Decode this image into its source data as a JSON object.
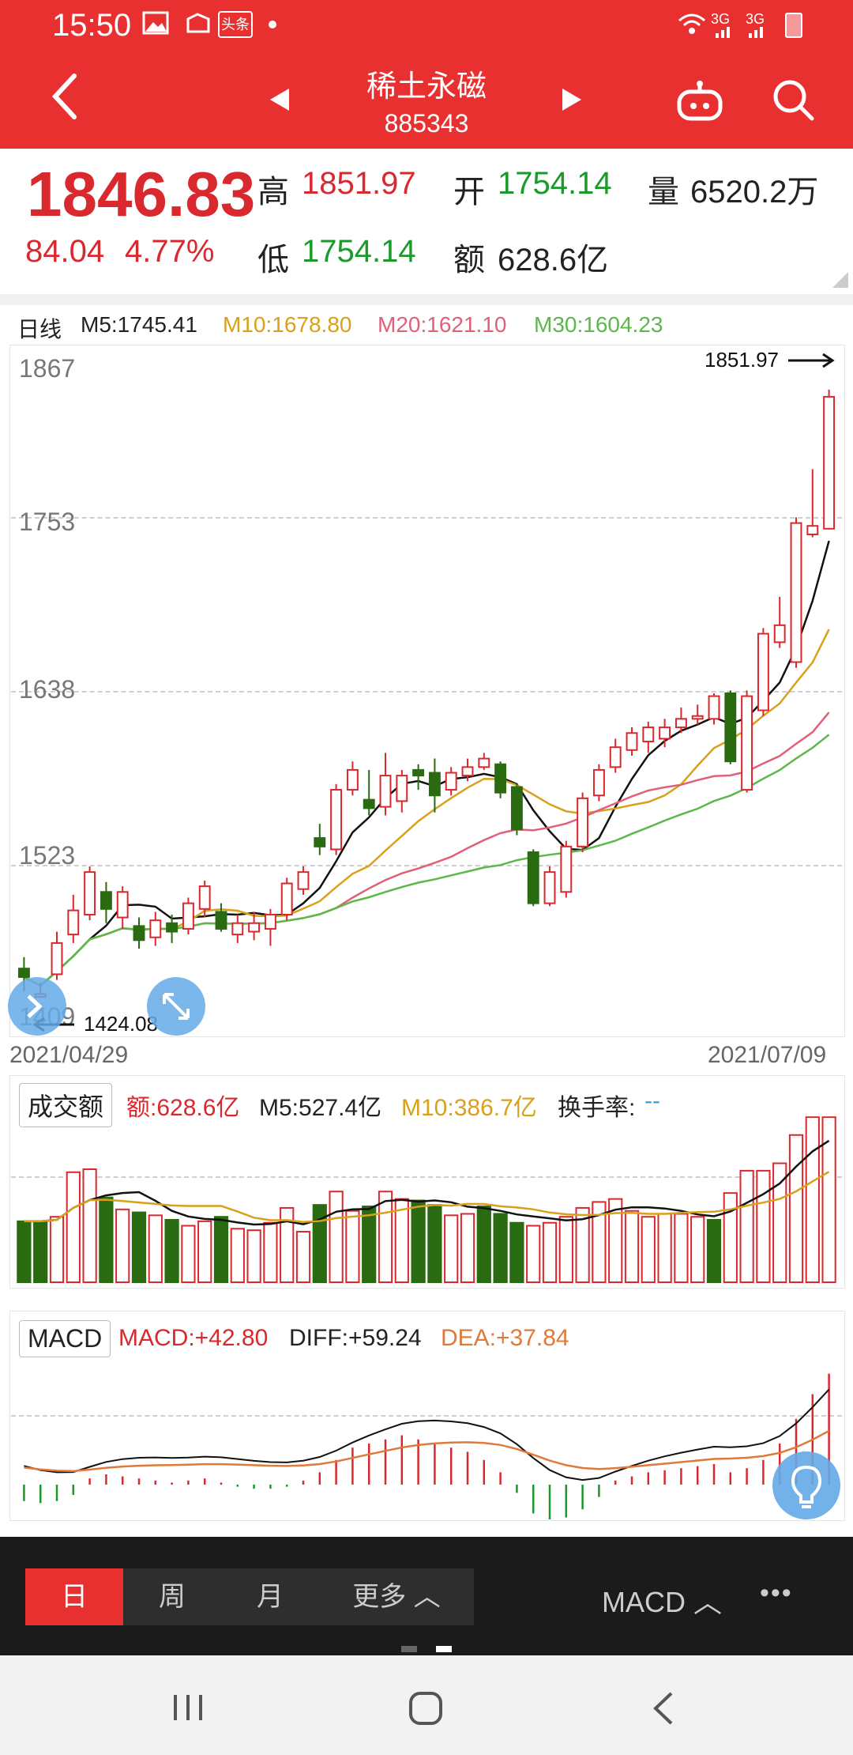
{
  "status": {
    "time": "15:50",
    "network": "3G",
    "network2": "3G"
  },
  "header": {
    "title": "稀土永磁",
    "code": "885343",
    "back_icon": "chevron-left-icon",
    "prev_icon": "triangle-left-icon",
    "next_icon": "triangle-right-icon",
    "robot_icon": "robot-icon",
    "search_icon": "search-icon"
  },
  "quote": {
    "price": "1846.83",
    "change": "84.04",
    "change_pct": "4.77%",
    "high_label": "高",
    "high": "1851.97",
    "open_label": "开",
    "open": "1754.14",
    "vol_label": "量",
    "vol": "6520.2万",
    "low_label": "低",
    "low": "1754.14",
    "amount_label": "额",
    "amount": "628.6亿"
  },
  "ma": {
    "period": "日线",
    "m5": "M5:1745.41",
    "m10": "M10:1678.80",
    "m20": "M20:1621.10",
    "m30": "M30:1604.23"
  },
  "chart": {
    "y_labels": [
      "1867",
      "1753",
      "1638",
      "1523",
      "1409"
    ],
    "max_label": "1851.97",
    "min_label": "1424.08",
    "start_date": "2021/04/29",
    "end_date": "2021/07/09"
  },
  "volume": {
    "button": "成交额",
    "amount": "额:628.6亿",
    "m5": "M5:527.4亿",
    "m10": "M10:386.7亿",
    "turnover_label": "换手率:",
    "turnover": "--"
  },
  "macd": {
    "button": "MACD",
    "macd": "MACD:+42.80",
    "diff": "DIFF:+59.24",
    "dea": "DEA:+37.84"
  },
  "bottom": {
    "tabs": [
      "日",
      "周",
      "月",
      "更多 ︿"
    ],
    "indicator": "MACD ︿",
    "more": "•••"
  },
  "colors": {
    "header": "#e93030",
    "up": "#d9282e",
    "down": "#2a6a10",
    "m10": "#d9a01a",
    "m20": "#e0607a",
    "m30": "#5cb84a"
  },
  "chart_data": {
    "type": "candlestick",
    "ylim": [
      1409,
      1867
    ],
    "candles": [
      {
        "o": 1444,
        "c": 1438,
        "h": 1452,
        "l": 1428
      },
      {
        "o": 1424,
        "c": 1426,
        "h": 1434,
        "l": 1424
      },
      {
        "o": 1440,
        "c": 1462,
        "h": 1470,
        "l": 1436
      },
      {
        "o": 1468,
        "c": 1485,
        "h": 1496,
        "l": 1462
      },
      {
        "o": 1482,
        "c": 1512,
        "h": 1516,
        "l": 1478
      },
      {
        "o": 1498,
        "c": 1486,
        "h": 1505,
        "l": 1476
      },
      {
        "o": 1480,
        "c": 1498,
        "h": 1502,
        "l": 1472
      },
      {
        "o": 1474,
        "c": 1464,
        "h": 1480,
        "l": 1458
      },
      {
        "o": 1466,
        "c": 1478,
        "h": 1484,
        "l": 1460
      },
      {
        "o": 1476,
        "c": 1470,
        "h": 1482,
        "l": 1462
      },
      {
        "o": 1472,
        "c": 1490,
        "h": 1494,
        "l": 1468
      },
      {
        "o": 1486,
        "c": 1502,
        "h": 1506,
        "l": 1480
      },
      {
        "o": 1484,
        "c": 1472,
        "h": 1490,
        "l": 1470
      },
      {
        "o": 1468,
        "c": 1476,
        "h": 1482,
        "l": 1462
      },
      {
        "o": 1470,
        "c": 1476,
        "h": 1484,
        "l": 1464
      },
      {
        "o": 1472,
        "c": 1482,
        "h": 1486,
        "l": 1460
      },
      {
        "o": 1482,
        "c": 1504,
        "h": 1508,
        "l": 1478
      },
      {
        "o": 1500,
        "c": 1512,
        "h": 1516,
        "l": 1496
      },
      {
        "o": 1536,
        "c": 1530,
        "h": 1546,
        "l": 1524
      },
      {
        "o": 1528,
        "c": 1570,
        "h": 1574,
        "l": 1524
      },
      {
        "o": 1570,
        "c": 1584,
        "h": 1590,
        "l": 1566
      },
      {
        "o": 1563,
        "c": 1557,
        "h": 1584,
        "l": 1552
      },
      {
        "o": 1558,
        "c": 1580,
        "h": 1596,
        "l": 1552
      },
      {
        "o": 1562,
        "c": 1580,
        "h": 1584,
        "l": 1554
      },
      {
        "o": 1584,
        "c": 1580,
        "h": 1588,
        "l": 1570
      },
      {
        "o": 1582,
        "c": 1566,
        "h": 1592,
        "l": 1554
      },
      {
        "o": 1570,
        "c": 1582,
        "h": 1586,
        "l": 1566
      },
      {
        "o": 1580,
        "c": 1586,
        "h": 1592,
        "l": 1576
      },
      {
        "o": 1586,
        "c": 1592,
        "h": 1596,
        "l": 1584
      },
      {
        "o": 1588,
        "c": 1568,
        "h": 1590,
        "l": 1564
      },
      {
        "o": 1572,
        "c": 1542,
        "h": 1574,
        "l": 1538
      },
      {
        "o": 1526,
        "c": 1490,
        "h": 1528,
        "l": 1488
      },
      {
        "o": 1490,
        "c": 1512,
        "h": 1516,
        "l": 1488
      },
      {
        "o": 1498,
        "c": 1530,
        "h": 1534,
        "l": 1494
      },
      {
        "o": 1530,
        "c": 1564,
        "h": 1568,
        "l": 1526
      },
      {
        "o": 1566,
        "c": 1584,
        "h": 1588,
        "l": 1562
      },
      {
        "o": 1586,
        "c": 1600,
        "h": 1606,
        "l": 1582
      },
      {
        "o": 1598,
        "c": 1610,
        "h": 1614,
        "l": 1594
      },
      {
        "o": 1604,
        "c": 1614,
        "h": 1618,
        "l": 1596
      },
      {
        "o": 1606,
        "c": 1614,
        "h": 1620,
        "l": 1600
      },
      {
        "o": 1614,
        "c": 1620,
        "h": 1628,
        "l": 1610
      },
      {
        "o": 1620,
        "c": 1622,
        "h": 1630,
        "l": 1616
      },
      {
        "o": 1620,
        "c": 1636,
        "h": 1638,
        "l": 1616
      },
      {
        "o": 1638,
        "c": 1590,
        "h": 1640,
        "l": 1588
      },
      {
        "o": 1570,
        "c": 1636,
        "h": 1640,
        "l": 1568
      },
      {
        "o": 1626,
        "c": 1680,
        "h": 1684,
        "l": 1622
      },
      {
        "o": 1674,
        "c": 1686,
        "h": 1706,
        "l": 1670
      },
      {
        "o": 1660,
        "c": 1758,
        "h": 1762,
        "l": 1656
      },
      {
        "o": 1750,
        "c": 1756,
        "h": 1796,
        "l": 1748
      },
      {
        "o": 1754,
        "c": 1847,
        "h": 1852,
        "l": 1754
      }
    ],
    "volume": [
      {
        "v": 41,
        "up": false
      },
      {
        "v": 41,
        "up": false
      },
      {
        "v": 44,
        "up": true
      },
      {
        "v": 74,
        "up": true
      },
      {
        "v": 76,
        "up": true
      },
      {
        "v": 57,
        "up": false
      },
      {
        "v": 49,
        "up": true
      },
      {
        "v": 47,
        "up": false
      },
      {
        "v": 45,
        "up": true
      },
      {
        "v": 42,
        "up": false
      },
      {
        "v": 38,
        "up": true
      },
      {
        "v": 41,
        "up": true
      },
      {
        "v": 44,
        "up": false
      },
      {
        "v": 36,
        "up": true
      },
      {
        "v": 35,
        "up": true
      },
      {
        "v": 40,
        "up": true
      },
      {
        "v": 50,
        "up": true
      },
      {
        "v": 34,
        "up": true
      },
      {
        "v": 52,
        "up": false
      },
      {
        "v": 61,
        "up": true
      },
      {
        "v": 48,
        "up": true
      },
      {
        "v": 51,
        "up": false
      },
      {
        "v": 61,
        "up": true
      },
      {
        "v": 56,
        "up": true
      },
      {
        "v": 55,
        "up": false
      },
      {
        "v": 52,
        "up": false
      },
      {
        "v": 45,
        "up": true
      },
      {
        "v": 46,
        "up": true
      },
      {
        "v": 51,
        "up": false
      },
      {
        "v": 46,
        "up": false
      },
      {
        "v": 40,
        "up": false
      },
      {
        "v": 38,
        "up": true
      },
      {
        "v": 40,
        "up": true
      },
      {
        "v": 44,
        "up": true
      },
      {
        "v": 50,
        "up": true
      },
      {
        "v": 54,
        "up": true
      },
      {
        "v": 56,
        "up": true
      },
      {
        "v": 48,
        "up": true
      },
      {
        "v": 44,
        "up": true
      },
      {
        "v": 46,
        "up": true
      },
      {
        "v": 46,
        "up": true
      },
      {
        "v": 44,
        "up": true
      },
      {
        "v": 42,
        "up": false
      },
      {
        "v": 60,
        "up": true
      },
      {
        "v": 75,
        "up": true
      },
      {
        "v": 75,
        "up": true
      },
      {
        "v": 80,
        "up": true
      },
      {
        "v": 99,
        "up": true
      },
      {
        "v": 111,
        "up": true
      },
      {
        "v": 111,
        "up": true
      }
    ],
    "macd_hist": [
      -8,
      -9,
      -8,
      -5,
      3,
      5,
      4,
      3,
      2,
      1,
      2,
      3,
      1,
      -1,
      -2,
      -2,
      -1,
      2,
      6,
      12,
      18,
      20,
      22,
      24,
      22,
      20,
      18,
      16,
      12,
      6,
      -4,
      -14,
      -18,
      -16,
      -12,
      -6,
      2,
      4,
      6,
      7,
      8,
      9,
      10,
      6,
      8,
      12,
      20,
      32,
      44,
      54
    ]
  }
}
